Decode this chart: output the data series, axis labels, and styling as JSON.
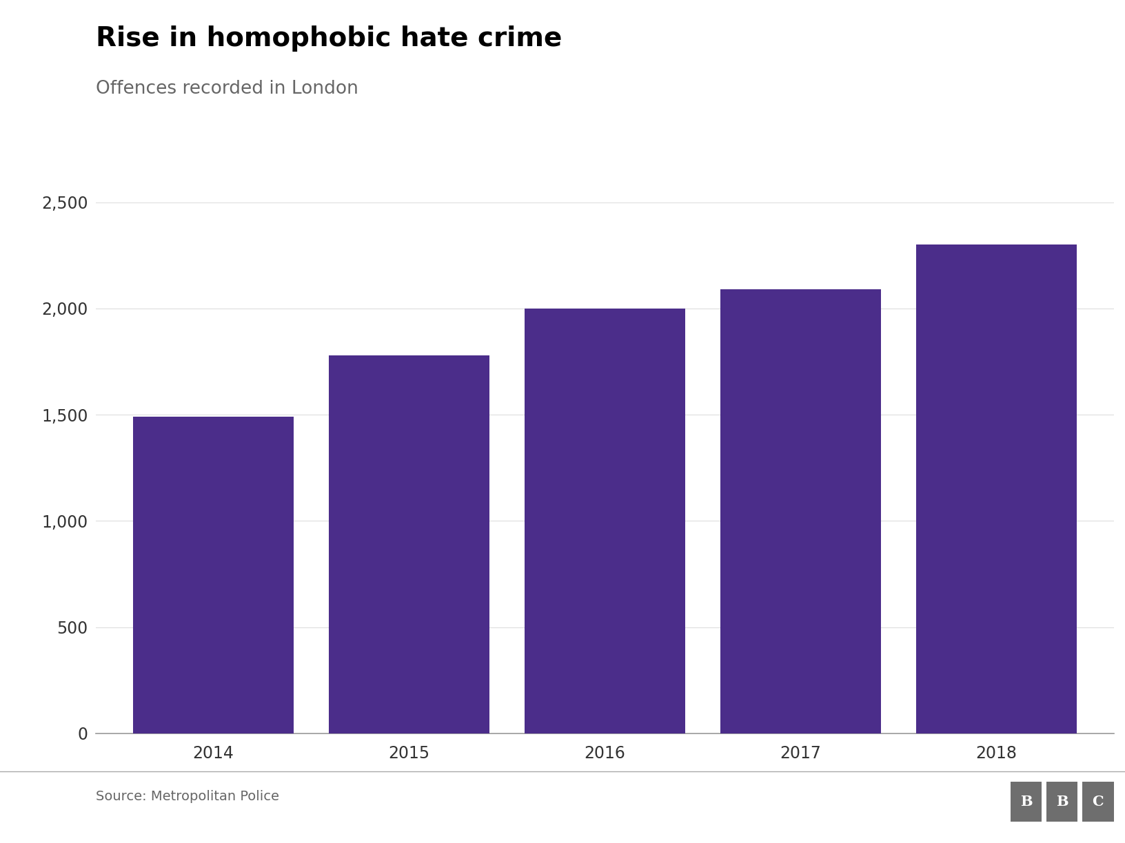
{
  "title": "Rise in homophobic hate crime",
  "subtitle": "Offences recorded in London",
  "categories": [
    "2014",
    "2015",
    "2016",
    "2017",
    "2018"
  ],
  "values": [
    1490,
    1780,
    2000,
    2090,
    2300
  ],
  "bar_color": "#4b2d8a",
  "ylim": [
    0,
    2500
  ],
  "yticks": [
    0,
    500,
    1000,
    1500,
    2000,
    2500
  ],
  "source_text": "Source: Metropolitan Police",
  "bbc_text": "BBC",
  "background_color": "#ffffff",
  "title_fontsize": 28,
  "subtitle_fontsize": 19,
  "tick_fontsize": 17,
  "source_fontsize": 14,
  "bar_width": 0.82,
  "title_color": "#000000",
  "subtitle_color": "#666666",
  "tick_color": "#333333",
  "grid_color": "#dddddd",
  "bottom_spine_color": "#999999",
  "separator_color": "#aaaaaa",
  "bbc_bg_color": "#6e6e6e"
}
